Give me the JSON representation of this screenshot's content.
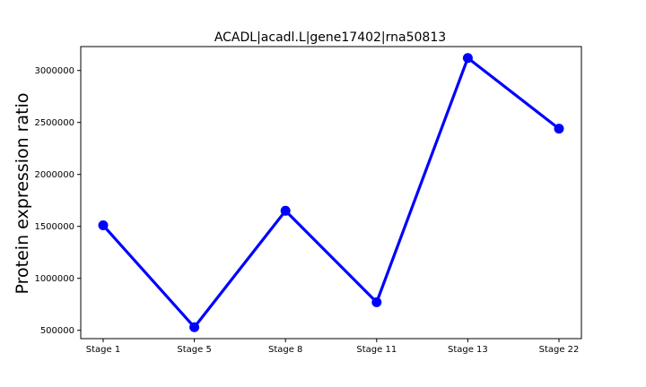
{
  "chart_data": {
    "type": "line",
    "title": "ACADL|acadl.L|gene17402|rna50813",
    "xlabel": "",
    "ylabel": "Protein expression ratio",
    "categories": [
      "Stage 1",
      "Stage 5",
      "Stage 8",
      "Stage 11",
      "Stage 13",
      "Stage 22"
    ],
    "series": [
      {
        "values": [
          1510000,
          530000,
          1650000,
          770000,
          3120000,
          2440000
        ],
        "color": "#0000ff"
      }
    ],
    "yticks": [
      500000,
      1000000,
      1500000,
      2000000,
      2500000,
      3000000
    ],
    "ytick_labels": [
      "500000",
      "1000000",
      "1500000",
      "2000000",
      "2500000",
      "3000000"
    ],
    "ylim": [
      420000,
      3230000
    ],
    "grid": false,
    "legend": "none"
  }
}
